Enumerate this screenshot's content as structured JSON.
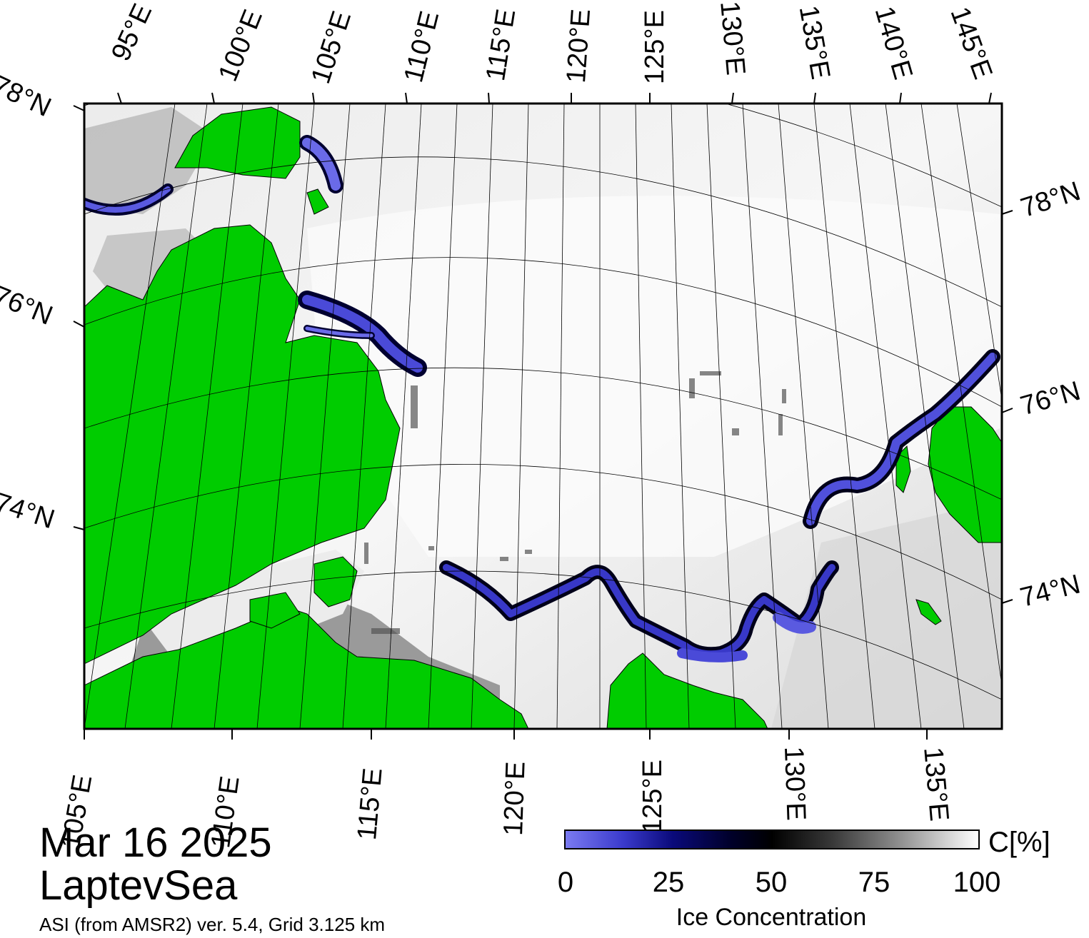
{
  "map": {
    "date": "Mar 16 2025",
    "region": "LaptevSea",
    "source": "ASI (from AMSR2) ver. 5.4,  Grid 3.125 km",
    "top_lon_labels": [
      "95°E",
      "100°E",
      "105°E",
      "110°E",
      "115°E",
      "120°E",
      "125°E",
      "130°E",
      "135°E",
      "140°E",
      "145°E"
    ],
    "bottom_lon_labels": [
      "105°E",
      "110°E",
      "115°E",
      "120°E",
      "125°E",
      "130°E",
      "135°E"
    ],
    "left_lat_labels": [
      "78°N",
      "76°N",
      "74°N"
    ],
    "right_lat_labels": [
      "78°N",
      "76°N",
      "74°N"
    ],
    "colors": {
      "land": "#00cc00",
      "open_water_low": "#5050e0",
      "ice_high": "#ffffff",
      "fast_ice_gray": "#909090",
      "frame": "#000000"
    }
  },
  "colorbar": {
    "unit": "C[%]",
    "ticks": [
      "0",
      "25",
      "50",
      "75",
      "100"
    ],
    "title": "Ice Concentration",
    "range": [
      0,
      100
    ]
  }
}
